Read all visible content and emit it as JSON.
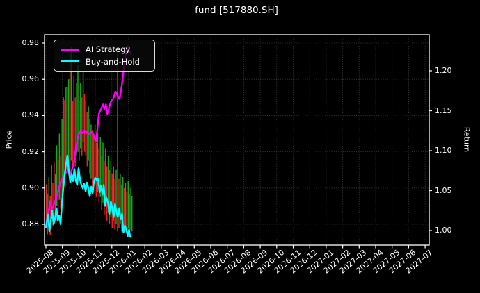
{
  "title": "fund [517880.SH]",
  "axes": {
    "left_label": "Price",
    "right_label": "Return",
    "price_ticks": [
      "0.98",
      "0.96",
      "0.94",
      "0.92",
      "0.90",
      "0.88"
    ],
    "return_ticks": [
      "1.20",
      "1.15",
      "1.10",
      "1.05",
      "1.00"
    ],
    "x_ticks": [
      "2025-08",
      "2025-09",
      "2025-10",
      "2025-11",
      "2025-12",
      "2026-01",
      "2026-02",
      "2026-03",
      "2026-04",
      "2026-05",
      "2026-06",
      "2026-07",
      "2026-08",
      "2026-09",
      "2026-10",
      "2026-11",
      "2026-12",
      "2027-01",
      "2027-02",
      "2027-03",
      "2027-04",
      "2027-05",
      "2027-06",
      "2027-07"
    ],
    "grid": "dotted"
  },
  "legend_position": "upper-left",
  "chart_data": {
    "type": "line",
    "title": "fund [517880.SH]",
    "x_unit": "months since 2025-08-01",
    "x_tick_labels": [
      "2025-08",
      "2025-09",
      "2025-10",
      "2025-11",
      "2025-12",
      "2026-01",
      "2026-02",
      "2026-03",
      "2026-04",
      "2026-05",
      "2026-06",
      "2026-07",
      "2026-08",
      "2026-09",
      "2026-10",
      "2026-11",
      "2026-12",
      "2027-01",
      "2027-02",
      "2027-03",
      "2027-04",
      "2027-05",
      "2027-06",
      "2027-07"
    ],
    "left_axis": {
      "label": "Price",
      "tick_values": [
        0.98,
        0.96,
        0.94,
        0.92,
        0.9,
        0.88
      ]
    },
    "right_axis": {
      "label": "Return",
      "tick_values": [
        1.2,
        1.15,
        1.1,
        1.05,
        1.0
      ]
    },
    "series": [
      {
        "name": "AI Strategy",
        "axis": "return",
        "color": "#ff00ff",
        "points": [
          [
            0.0,
            1.004
          ],
          [
            0.08,
            1.016
          ],
          [
            0.17,
            1.025
          ],
          [
            0.25,
            1.037
          ],
          [
            0.38,
            1.026
          ],
          [
            0.47,
            1.032
          ],
          [
            0.59,
            1.038
          ],
          [
            0.72,
            1.048
          ],
          [
            0.85,
            1.058
          ],
          [
            0.97,
            1.064
          ],
          [
            1.1,
            1.068
          ],
          [
            1.22,
            1.073
          ],
          [
            1.35,
            1.076
          ],
          [
            1.48,
            1.069
          ],
          [
            1.56,
            1.075
          ],
          [
            1.69,
            1.085
          ],
          [
            1.77,
            1.097
          ],
          [
            1.86,
            1.108
          ],
          [
            1.98,
            1.12
          ],
          [
            2.11,
            1.125
          ],
          [
            2.24,
            1.122
          ],
          [
            2.36,
            1.125
          ],
          [
            2.49,
            1.123
          ],
          [
            2.62,
            1.121
          ],
          [
            2.79,
            1.124
          ],
          [
            2.91,
            1.118
          ],
          [
            3.04,
            1.112
          ],
          [
            3.13,
            1.128
          ],
          [
            3.21,
            1.146
          ],
          [
            3.34,
            1.152
          ],
          [
            3.47,
            1.158
          ],
          [
            3.55,
            1.152
          ],
          [
            3.64,
            1.158
          ],
          [
            3.72,
            1.146
          ],
          [
            3.81,
            1.152
          ],
          [
            3.89,
            1.158
          ],
          [
            3.98,
            1.163
          ],
          [
            4.09,
            1.165
          ],
          [
            4.22,
            1.174
          ],
          [
            4.35,
            1.169
          ],
          [
            4.47,
            1.165
          ],
          [
            4.6,
            1.181
          ],
          [
            4.73,
            1.203
          ],
          [
            4.85,
            1.223
          ],
          [
            4.97,
            1.231
          ],
          [
            5.06,
            1.226
          ],
          [
            5.15,
            1.221
          ]
        ]
      },
      {
        "name": "Buy-and-Hold",
        "axis": "return",
        "color": "#00ffff",
        "points": [
          [
            0.0,
            1.004
          ],
          [
            0.13,
            1.02
          ],
          [
            0.21,
            0.999
          ],
          [
            0.3,
            1.012
          ],
          [
            0.38,
            1.025
          ],
          [
            0.47,
            1.008
          ],
          [
            0.55,
            1.015
          ],
          [
            0.64,
            1.028
          ],
          [
            0.72,
            1.012
          ],
          [
            0.8,
            1.019
          ],
          [
            0.89,
            1.008
          ],
          [
            0.97,
            1.035
          ],
          [
            1.05,
            1.052
          ],
          [
            1.14,
            1.07
          ],
          [
            1.22,
            1.083
          ],
          [
            1.31,
            1.094
          ],
          [
            1.39,
            1.075
          ],
          [
            1.48,
            1.06
          ],
          [
            1.56,
            1.071
          ],
          [
            1.64,
            1.062
          ],
          [
            1.73,
            1.077
          ],
          [
            1.81,
            1.063
          ],
          [
            1.9,
            1.057
          ],
          [
            1.98,
            1.078
          ],
          [
            2.07,
            1.064
          ],
          [
            2.15,
            1.057
          ],
          [
            2.24,
            1.053
          ],
          [
            2.32,
            1.059
          ],
          [
            2.41,
            1.049
          ],
          [
            2.49,
            1.06
          ],
          [
            2.58,
            1.053
          ],
          [
            2.66,
            1.043
          ],
          [
            2.75,
            1.055
          ],
          [
            2.83,
            1.047
          ],
          [
            2.92,
            1.062
          ],
          [
            3.0,
            1.066
          ],
          [
            3.09,
            1.063
          ],
          [
            3.17,
            1.065
          ],
          [
            3.26,
            1.048
          ],
          [
            3.34,
            1.056
          ],
          [
            3.43,
            1.045
          ],
          [
            3.51,
            1.057
          ],
          [
            3.6,
            1.031
          ],
          [
            3.68,
            1.041
          ],
          [
            3.77,
            1.035
          ],
          [
            3.85,
            1.021
          ],
          [
            3.94,
            1.036
          ],
          [
            4.02,
            1.028
          ],
          [
            4.11,
            1.017
          ],
          [
            4.19,
            1.033
          ],
          [
            4.28,
            1.024
          ],
          [
            4.36,
            1.017
          ],
          [
            4.45,
            1.028
          ],
          [
            4.53,
            1.014
          ],
          [
            4.62,
            1.021
          ],
          [
            4.7,
            0.998
          ],
          [
            4.79,
            1.006
          ],
          [
            4.87,
            1.002
          ],
          [
            4.96,
            0.993
          ],
          [
            5.04,
            1.001
          ],
          [
            5.12,
            0.992
          ]
        ]
      }
    ],
    "price_bars": {
      "description": "daily high-low range bars on Price axis",
      "axis": "price",
      "red_color": "#e32222",
      "green_color": "#1fa51f",
      "bars": [
        [
          0.02,
          0.88,
          0.902,
          "r"
        ],
        [
          0.1,
          0.8745,
          0.897,
          "r"
        ],
        [
          0.18,
          0.878,
          0.906,
          "g"
        ],
        [
          0.26,
          0.874,
          0.8955,
          "r"
        ],
        [
          0.34,
          0.883,
          0.9125,
          "g"
        ],
        [
          0.42,
          0.879,
          0.903,
          "r"
        ],
        [
          0.5,
          0.8855,
          0.9145,
          "r"
        ],
        [
          0.58,
          0.882,
          0.908,
          "g"
        ],
        [
          0.66,
          0.89,
          0.9235,
          "g"
        ],
        [
          0.74,
          0.8855,
          0.9155,
          "r"
        ],
        [
          0.82,
          0.8935,
          0.93,
          "g"
        ],
        [
          0.9,
          0.8885,
          0.918,
          "r"
        ],
        [
          0.98,
          0.895,
          0.938,
          "g"
        ],
        [
          1.06,
          0.9,
          0.95,
          "g"
        ],
        [
          1.14,
          0.9045,
          0.9485,
          "r"
        ],
        [
          1.22,
          0.91,
          0.9555,
          "g"
        ],
        [
          1.3,
          0.908,
          0.9555,
          "r"
        ],
        [
          1.38,
          0.912,
          0.96,
          "g"
        ],
        [
          1.46,
          0.908,
          0.9755,
          "r"
        ],
        [
          1.54,
          0.915,
          0.978,
          "g"
        ],
        [
          1.62,
          0.91,
          0.948,
          "r"
        ],
        [
          1.7,
          0.915,
          0.962,
          "g"
        ],
        [
          1.78,
          0.912,
          0.95,
          "r"
        ],
        [
          1.86,
          0.918,
          0.958,
          "g"
        ],
        [
          1.94,
          0.92,
          0.968,
          "g"
        ],
        [
          2.02,
          0.915,
          0.948,
          "r"
        ],
        [
          2.1,
          0.922,
          0.958,
          "g"
        ],
        [
          2.18,
          0.918,
          0.95,
          "r"
        ],
        [
          2.26,
          0.925,
          0.9645,
          "g"
        ],
        [
          2.34,
          0.92,
          0.952,
          "r"
        ],
        [
          2.42,
          0.918,
          0.948,
          "g"
        ],
        [
          2.5,
          0.912,
          0.942,
          "r"
        ],
        [
          2.58,
          0.915,
          0.945,
          "g"
        ],
        [
          2.66,
          0.908,
          0.938,
          "r"
        ],
        [
          2.74,
          0.905,
          0.935,
          "g"
        ],
        [
          2.82,
          0.9,
          0.932,
          "r"
        ],
        [
          2.9,
          0.898,
          0.93,
          "r"
        ],
        [
          2.98,
          0.902,
          0.935,
          "g"
        ],
        [
          3.06,
          0.895,
          0.925,
          "r"
        ],
        [
          3.14,
          0.898,
          0.93,
          "g"
        ],
        [
          3.22,
          0.892,
          0.922,
          "r"
        ],
        [
          3.3,
          0.895,
          0.928,
          "g"
        ],
        [
          3.38,
          0.888,
          0.918,
          "r"
        ],
        [
          3.46,
          0.892,
          0.925,
          "g"
        ],
        [
          3.54,
          0.885,
          0.915,
          "r"
        ],
        [
          3.62,
          0.89,
          0.922,
          "g"
        ],
        [
          3.7,
          0.882,
          0.912,
          "r"
        ],
        [
          3.78,
          0.886,
          0.918,
          "g"
        ],
        [
          3.86,
          0.88,
          0.91,
          "r"
        ],
        [
          3.94,
          0.884,
          0.915,
          "g"
        ],
        [
          4.02,
          0.878,
          0.908,
          "r"
        ],
        [
          4.1,
          0.882,
          0.912,
          "g"
        ],
        [
          4.18,
          0.877,
          0.905,
          "r"
        ],
        [
          4.26,
          0.88,
          0.91,
          "g"
        ],
        [
          4.35,
          0.876,
          0.975,
          "g"
        ],
        [
          4.43,
          0.878,
          0.905,
          "r"
        ],
        [
          4.51,
          0.88,
          0.908,
          "g"
        ],
        [
          4.59,
          0.876,
          0.902,
          "r"
        ],
        [
          4.67,
          0.879,
          0.906,
          "g"
        ],
        [
          4.75,
          0.875,
          0.9,
          "r"
        ],
        [
          4.83,
          0.877,
          0.903,
          "g"
        ],
        [
          4.91,
          0.875,
          0.898,
          "r"
        ],
        [
          4.99,
          0.878,
          0.904,
          "g"
        ],
        [
          5.07,
          0.874,
          0.8965,
          "r"
        ],
        [
          5.15,
          0.877,
          0.9,
          "g"
        ],
        [
          5.22,
          0.876,
          0.8955,
          "g"
        ]
      ]
    },
    "style": {
      "background": "#000000",
      "text": "#ffffff",
      "spine": "#ffffff"
    }
  }
}
